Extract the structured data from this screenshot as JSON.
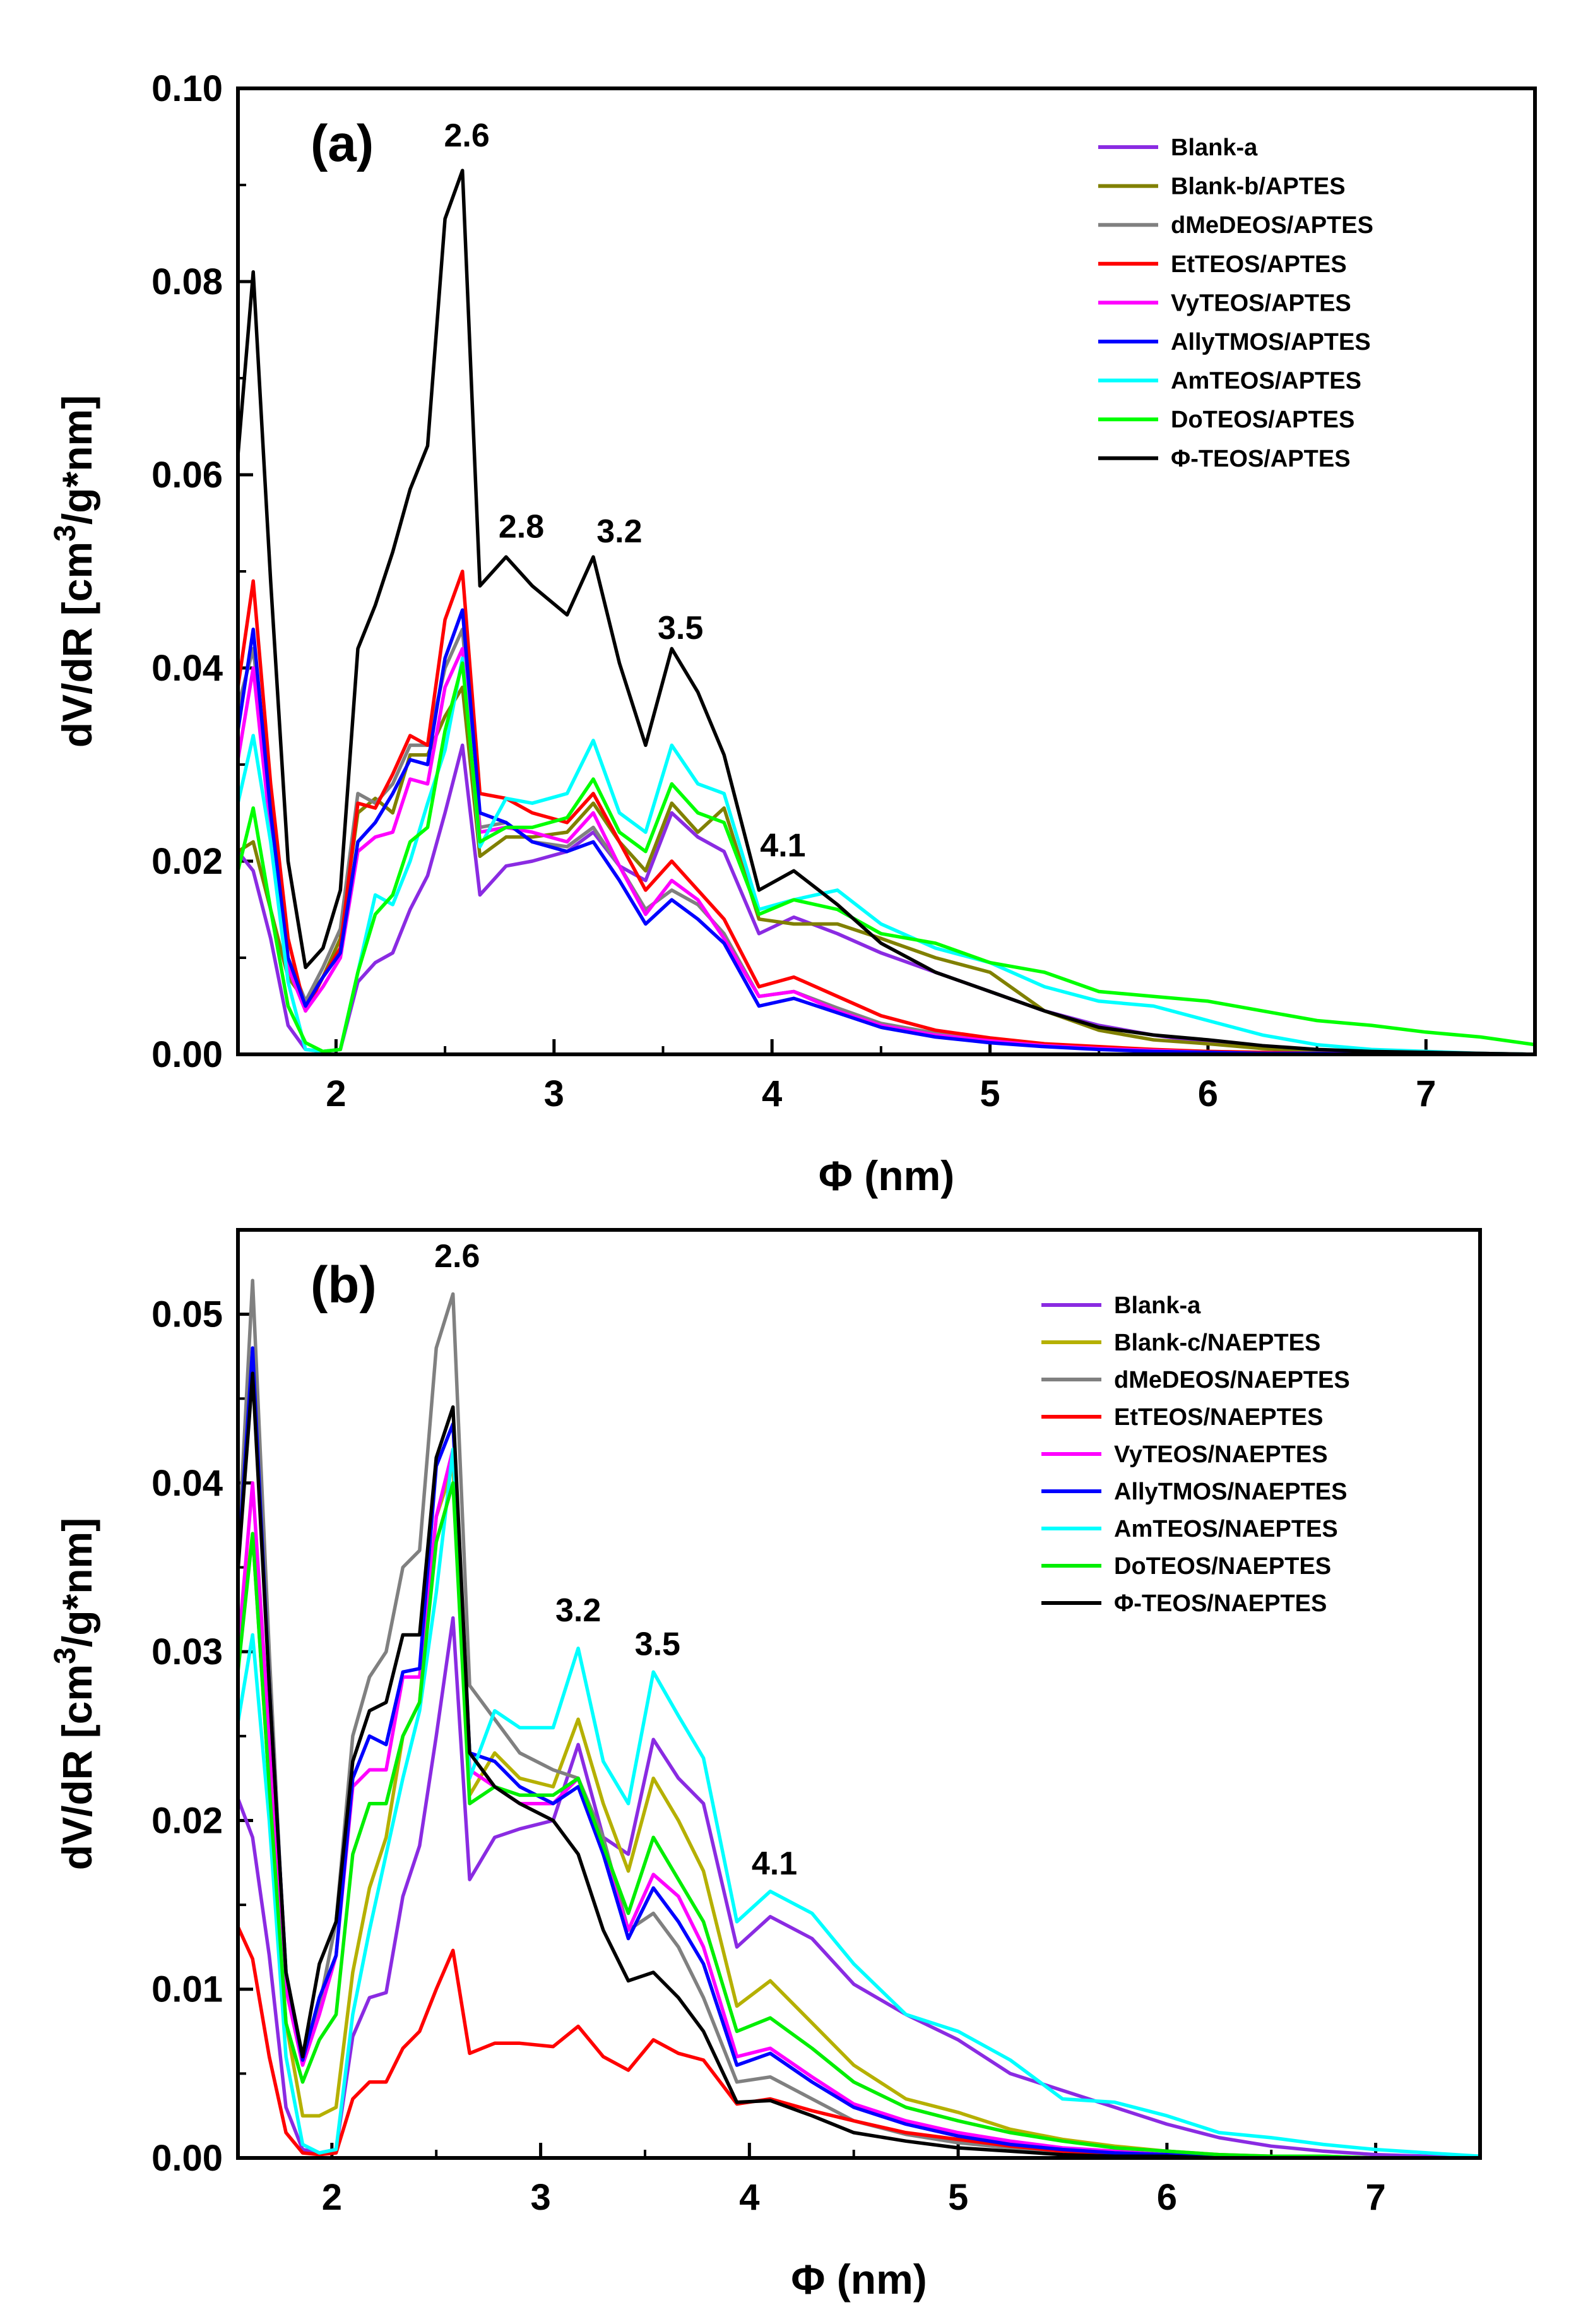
{
  "chart_data": [
    {
      "type": "line",
      "panel_label": "(a)",
      "xlabel": "Φ (nm)",
      "ylabel": "dV/dR [cm3/g*nm]",
      "ylabel_parts": [
        "dV/dR [cm",
        "3",
        "/g*nm]"
      ],
      "xlim": [
        1.55,
        7.5
      ],
      "ylim": [
        0,
        0.1
      ],
      "xticks": [
        2,
        3,
        4,
        5,
        6,
        7
      ],
      "xtick_labels": [
        "2",
        "3",
        "4",
        "5",
        "6",
        "7"
      ],
      "yticks": [
        0,
        0.02,
        0.04,
        0.06,
        0.08,
        0.1
      ],
      "ytick_labels": [
        "0.00",
        "0.02",
        "0.04",
        "0.06",
        "0.08",
        "0.10"
      ],
      "annotations": [
        {
          "text": "2.6",
          "x": 2.6,
          "y": 0.094
        },
        {
          "text": "2.8",
          "x": 2.85,
          "y": 0.0535
        },
        {
          "text": "3.2",
          "x": 3.3,
          "y": 0.053
        },
        {
          "text": "3.5",
          "x": 3.58,
          "y": 0.043
        },
        {
          "text": "4.1",
          "x": 4.05,
          "y": 0.0205
        }
      ],
      "x": [
        1.55,
        1.62,
        1.7,
        1.78,
        1.86,
        1.94,
        2.02,
        2.1,
        2.18,
        2.26,
        2.34,
        2.42,
        2.5,
        2.58,
        2.66,
        2.78,
        2.9,
        3.06,
        3.18,
        3.3,
        3.42,
        3.54,
        3.66,
        3.78,
        3.94,
        4.1,
        4.3,
        4.5,
        4.75,
        5.0,
        5.25,
        5.5,
        5.75,
        6.0,
        6.25,
        6.5,
        6.75,
        7.0,
        7.25,
        7.5
      ],
      "series": [
        {
          "name": "Blank-a",
          "color": "#8a2be2",
          "values": [
            0.021,
            0.019,
            0.012,
            0.003,
            0.0005,
            0.0003,
            0.0005,
            0.0075,
            0.0095,
            0.0105,
            0.015,
            0.0185,
            0.025,
            0.032,
            0.0165,
            0.0195,
            0.02,
            0.021,
            0.023,
            0.0195,
            0.018,
            0.025,
            0.0225,
            0.021,
            0.0125,
            0.0142,
            0.0125,
            0.0105,
            0.0085,
            0.0065,
            0.0045,
            0.003,
            0.002,
            0.0012,
            0.0007,
            0.0004,
            0.0002,
            0.0001,
            0.0001,
            0.0
          ]
        },
        {
          "name": "Blank-b/APTES",
          "color": "#808000",
          "values": [
            0.021,
            0.022,
            0.015,
            0.008,
            0.0055,
            0.008,
            0.012,
            0.025,
            0.0265,
            0.025,
            0.031,
            0.031,
            0.035,
            0.038,
            0.0205,
            0.0225,
            0.0225,
            0.023,
            0.026,
            0.022,
            0.019,
            0.026,
            0.023,
            0.0255,
            0.014,
            0.0135,
            0.0135,
            0.012,
            0.01,
            0.0085,
            0.0045,
            0.0025,
            0.0015,
            0.0011,
            0.0006,
            0.0003,
            0.0002,
            0.0001,
            0.0001,
            0.0
          ]
        },
        {
          "name": "dMeDEOS/APTES",
          "color": "#808080",
          "values": [
            0.036,
            0.042,
            0.026,
            0.01,
            0.0055,
            0.009,
            0.013,
            0.027,
            0.026,
            0.028,
            0.032,
            0.032,
            0.04,
            0.044,
            0.0235,
            0.024,
            0.022,
            0.0215,
            0.0235,
            0.0195,
            0.015,
            0.017,
            0.0155,
            0.0125,
            0.006,
            0.0065,
            0.0048,
            0.0032,
            0.0022,
            0.0015,
            0.001,
            0.0007,
            0.0004,
            0.0003,
            0.0002,
            0.0001,
            0.0001,
            0.0,
            0.0,
            0.0
          ]
        },
        {
          "name": "EtTEOS/APTES",
          "color": "#ff0000",
          "values": [
            0.038,
            0.049,
            0.028,
            0.012,
            0.0045,
            0.008,
            0.011,
            0.026,
            0.0255,
            0.029,
            0.033,
            0.032,
            0.045,
            0.05,
            0.027,
            0.0265,
            0.025,
            0.024,
            0.027,
            0.022,
            0.017,
            0.02,
            0.017,
            0.014,
            0.007,
            0.008,
            0.006,
            0.004,
            0.0025,
            0.0017,
            0.0011,
            0.0008,
            0.0005,
            0.0003,
            0.0002,
            0.0001,
            0.0001,
            0.0,
            0.0,
            0.0
          ]
        },
        {
          "name": "VyTEOS/APTES",
          "color": "#ff00ff",
          "values": [
            0.0305,
            0.04,
            0.023,
            0.009,
            0.0045,
            0.007,
            0.01,
            0.021,
            0.0225,
            0.023,
            0.0285,
            0.028,
            0.038,
            0.042,
            0.023,
            0.0235,
            0.023,
            0.022,
            0.025,
            0.0195,
            0.0145,
            0.018,
            0.016,
            0.012,
            0.006,
            0.0065,
            0.0045,
            0.003,
            0.002,
            0.0014,
            0.0009,
            0.0006,
            0.0004,
            0.0002,
            0.0001,
            0.0001,
            0.0,
            0.0,
            0.0,
            0.0
          ]
        },
        {
          "name": "AllyTMOS/APTES",
          "color": "#0000ff",
          "values": [
            0.0335,
            0.044,
            0.025,
            0.01,
            0.005,
            0.008,
            0.0105,
            0.022,
            0.024,
            0.027,
            0.0305,
            0.03,
            0.041,
            0.046,
            0.025,
            0.024,
            0.022,
            0.021,
            0.022,
            0.018,
            0.0135,
            0.016,
            0.014,
            0.0115,
            0.005,
            0.0058,
            0.0043,
            0.0028,
            0.0018,
            0.0012,
            0.0008,
            0.0005,
            0.0003,
            0.0002,
            0.0001,
            0.0001,
            0.0,
            0.0,
            0.0,
            0.0
          ]
        },
        {
          "name": "AmTEOS/APTES",
          "color": "#00ffff",
          "values": [
            0.026,
            0.033,
            0.022,
            0.0075,
            0.0005,
            0.0003,
            0.0005,
            0.0085,
            0.0165,
            0.0155,
            0.02,
            0.026,
            0.0315,
            0.041,
            0.0215,
            0.0265,
            0.026,
            0.027,
            0.0325,
            0.025,
            0.023,
            0.032,
            0.028,
            0.027,
            0.015,
            0.016,
            0.017,
            0.0135,
            0.011,
            0.0095,
            0.007,
            0.0055,
            0.005,
            0.0035,
            0.002,
            0.001,
            0.0005,
            0.0003,
            0.0001,
            0.0
          ]
        },
        {
          "name": "DoTEOS/APTES",
          "color": "#00ff00",
          "values": [
            0.019,
            0.0255,
            0.015,
            0.005,
            0.0012,
            0.0003,
            0.0005,
            0.0085,
            0.0145,
            0.0165,
            0.022,
            0.0235,
            0.0335,
            0.0405,
            0.022,
            0.0235,
            0.0235,
            0.0245,
            0.0285,
            0.023,
            0.021,
            0.028,
            0.025,
            0.024,
            0.0145,
            0.016,
            0.015,
            0.0125,
            0.0115,
            0.0095,
            0.0085,
            0.0065,
            0.006,
            0.0055,
            0.0045,
            0.0035,
            0.003,
            0.0023,
            0.0018,
            0.001
          ]
        },
        {
          "name": "Φ-TEOS/APTES",
          "color": "#000000",
          "values": [
            0.062,
            0.081,
            0.049,
            0.02,
            0.009,
            0.011,
            0.017,
            0.042,
            0.0465,
            0.052,
            0.0585,
            0.063,
            0.0865,
            0.0915,
            0.0485,
            0.0515,
            0.0485,
            0.0455,
            0.0515,
            0.0405,
            0.032,
            0.042,
            0.0375,
            0.031,
            0.017,
            0.019,
            0.0155,
            0.0115,
            0.0085,
            0.0065,
            0.0045,
            0.0028,
            0.002,
            0.0015,
            0.0009,
            0.0005,
            0.0003,
            0.0002,
            0.0001,
            0.0
          ]
        }
      ]
    },
    {
      "type": "line",
      "panel_label": "(b)",
      "xlabel": "Φ (nm)",
      "ylabel": "dV/dR [cm3/g*nm]",
      "ylabel_parts": [
        "dV/dR [cm",
        "3",
        "/g*nm]"
      ],
      "xlim": [
        1.55,
        7.5
      ],
      "ylim": [
        0,
        0.055
      ],
      "xticks": [
        2,
        3,
        4,
        5,
        6,
        7
      ],
      "xtick_labels": [
        "2",
        "3",
        "4",
        "5",
        "6",
        "7"
      ],
      "yticks": [
        0,
        0.01,
        0.02,
        0.03,
        0.04,
        0.05
      ],
      "ytick_labels": [
        "0.00",
        "0.01",
        "0.02",
        "0.03",
        "0.04",
        "0.05"
      ],
      "annotations": [
        {
          "text": "2.6",
          "x": 2.6,
          "y": 0.0528
        },
        {
          "text": "3.2",
          "x": 3.18,
          "y": 0.0318
        },
        {
          "text": "3.5",
          "x": 3.56,
          "y": 0.0298
        },
        {
          "text": "4.1",
          "x": 4.12,
          "y": 0.0168
        }
      ],
      "x": [
        1.55,
        1.62,
        1.7,
        1.78,
        1.86,
        1.94,
        2.02,
        2.1,
        2.18,
        2.26,
        2.34,
        2.42,
        2.5,
        2.58,
        2.66,
        2.78,
        2.9,
        3.06,
        3.18,
        3.3,
        3.42,
        3.54,
        3.66,
        3.78,
        3.94,
        4.1,
        4.3,
        4.5,
        4.75,
        5.0,
        5.25,
        5.5,
        5.75,
        6.0,
        6.25,
        6.5,
        6.75,
        7.0,
        7.25,
        7.5
      ],
      "series": [
        {
          "name": "Blank-a",
          "color": "#8a2be2",
          "values": [
            0.0213,
            0.019,
            0.012,
            0.003,
            0.0005,
            0.0003,
            0.0005,
            0.0072,
            0.0095,
            0.0098,
            0.0155,
            0.0185,
            0.025,
            0.032,
            0.0165,
            0.019,
            0.0195,
            0.02,
            0.0245,
            0.019,
            0.018,
            0.0248,
            0.0225,
            0.021,
            0.0125,
            0.0143,
            0.013,
            0.0103,
            0.0085,
            0.007,
            0.005,
            0.004,
            0.003,
            0.002,
            0.0012,
            0.0007,
            0.0004,
            0.0002,
            0.0001,
            0.0
          ]
        },
        {
          "name": "Blank-c/NAEPTES",
          "color": "#b5b000",
          "values": [
            0.03,
            0.037,
            0.022,
            0.008,
            0.0025,
            0.0025,
            0.003,
            0.011,
            0.016,
            0.019,
            0.025,
            0.027,
            0.038,
            0.041,
            0.0215,
            0.024,
            0.0225,
            0.022,
            0.026,
            0.021,
            0.017,
            0.0225,
            0.02,
            0.017,
            0.009,
            0.0105,
            0.008,
            0.0055,
            0.0035,
            0.0027,
            0.0017,
            0.0011,
            0.0007,
            0.0004,
            0.0002,
            0.0001,
            0.0001,
            0.0,
            0.0,
            0.0
          ]
        },
        {
          "name": "dMeDEOS/NAEPTES",
          "color": "#808080",
          "values": [
            0.0355,
            0.052,
            0.03,
            0.01,
            0.006,
            0.009,
            0.014,
            0.025,
            0.0285,
            0.03,
            0.035,
            0.036,
            0.048,
            0.0512,
            0.028,
            0.026,
            0.024,
            0.023,
            0.0225,
            0.019,
            0.0135,
            0.0145,
            0.0125,
            0.0095,
            0.0045,
            0.0048,
            0.0035,
            0.0022,
            0.0014,
            0.0009,
            0.0006,
            0.0003,
            0.0002,
            0.0001,
            0.0001,
            0.0,
            0.0,
            0.0,
            0.0,
            0.0
          ]
        },
        {
          "name": "EtTEOS/NAEPTES",
          "color": "#ff0000",
          "values": [
            0.0137,
            0.0118,
            0.006,
            0.0015,
            0.0003,
            0.0002,
            0.0003,
            0.0035,
            0.0045,
            0.0045,
            0.0065,
            0.0075,
            0.01,
            0.0123,
            0.0062,
            0.0068,
            0.0068,
            0.0066,
            0.0078,
            0.006,
            0.0052,
            0.007,
            0.0062,
            0.0058,
            0.0032,
            0.0035,
            0.0028,
            0.0022,
            0.0015,
            0.0011,
            0.0007,
            0.0004,
            0.0003,
            0.0002,
            0.0001,
            0.0001,
            0.0,
            0.0,
            0.0,
            0.0
          ]
        },
        {
          "name": "VyTEOS/NAEPTES",
          "color": "#ff00ff",
          "values": [
            0.03,
            0.04,
            0.025,
            0.01,
            0.0055,
            0.0085,
            0.012,
            0.022,
            0.023,
            0.023,
            0.0285,
            0.0285,
            0.038,
            0.042,
            0.023,
            0.022,
            0.021,
            0.021,
            0.0225,
            0.018,
            0.0135,
            0.0168,
            0.0155,
            0.0125,
            0.006,
            0.0065,
            0.0048,
            0.0032,
            0.0022,
            0.0015,
            0.001,
            0.0006,
            0.0004,
            0.0002,
            0.0001,
            0.0001,
            0.0,
            0.0,
            0.0,
            0.0
          ]
        },
        {
          "name": "AllyTMOS/NAEPTES",
          "color": "#0000ff",
          "values": [
            0.035,
            0.048,
            0.028,
            0.011,
            0.0058,
            0.0095,
            0.012,
            0.0225,
            0.025,
            0.0245,
            0.0288,
            0.029,
            0.041,
            0.0435,
            0.024,
            0.0235,
            0.022,
            0.021,
            0.022,
            0.018,
            0.013,
            0.016,
            0.014,
            0.0115,
            0.0055,
            0.0062,
            0.0045,
            0.003,
            0.002,
            0.0013,
            0.0008,
            0.0005,
            0.0003,
            0.0002,
            0.0001,
            0.0001,
            0.0,
            0.0,
            0.0,
            0.0
          ]
        },
        {
          "name": "AmTEOS/NAEPTES",
          "color": "#00ffff",
          "values": [
            0.0258,
            0.031,
            0.02,
            0.006,
            0.0008,
            0.0003,
            0.0005,
            0.0085,
            0.0135,
            0.018,
            0.0225,
            0.0265,
            0.0335,
            0.042,
            0.0225,
            0.0265,
            0.0255,
            0.0255,
            0.0302,
            0.0235,
            0.021,
            0.0288,
            0.0262,
            0.0237,
            0.014,
            0.0158,
            0.0145,
            0.0115,
            0.0085,
            0.0075,
            0.0058,
            0.0035,
            0.0033,
            0.0025,
            0.0015,
            0.0012,
            0.0008,
            0.0005,
            0.0003,
            0.0001
          ]
        },
        {
          "name": "DoTEOS/NAEPTES",
          "color": "#00ee00",
          "values": [
            0.0288,
            0.037,
            0.022,
            0.008,
            0.0045,
            0.007,
            0.0085,
            0.018,
            0.021,
            0.021,
            0.025,
            0.027,
            0.0365,
            0.04,
            0.021,
            0.022,
            0.0215,
            0.0215,
            0.0225,
            0.0185,
            0.0145,
            0.019,
            0.0165,
            0.014,
            0.0075,
            0.0083,
            0.0065,
            0.0045,
            0.003,
            0.0022,
            0.0015,
            0.001,
            0.0006,
            0.0004,
            0.0002,
            0.0001,
            0.0001,
            0.0,
            0.0,
            0.0
          ]
        },
        {
          "name": "Φ-TEOS/NAEPTES",
          "color": "#000000",
          "values": [
            0.0348,
            0.0465,
            0.028,
            0.011,
            0.006,
            0.0115,
            0.014,
            0.0235,
            0.0265,
            0.027,
            0.031,
            0.031,
            0.0415,
            0.0445,
            0.024,
            0.022,
            0.021,
            0.02,
            0.018,
            0.0135,
            0.0105,
            0.011,
            0.0095,
            0.0075,
            0.0033,
            0.0034,
            0.0025,
            0.0015,
            0.001,
            0.0006,
            0.0004,
            0.0002,
            0.0001,
            0.0001,
            0.0,
            0.0,
            0.0,
            0.0,
            0.0,
            0.0
          ]
        }
      ]
    }
  ]
}
